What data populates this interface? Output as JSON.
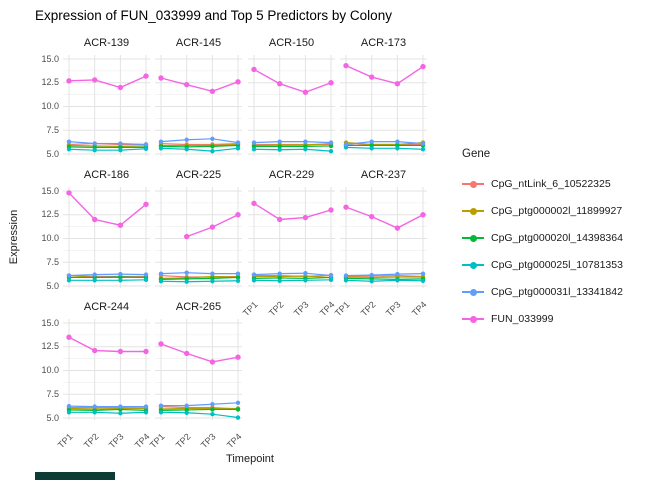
{
  "legend": {
    "title": "Gene"
  },
  "misc": {
    "bottom_left_bar_color": "#0d3b35",
    "grid_major_color": "#e3e3e3",
    "grid_minor_color": "#f1f1f1"
  },
  "chart_data": {
    "type": "line",
    "title": "Expression of FUN_033999 and Top 5 Predictors by Colony",
    "xlabel": "Timepoint",
    "ylabel": "Expression",
    "x_ticks": [
      "TP1",
      "TP2",
      "TP3",
      "TP4"
    ],
    "y_ticks": [
      "15.0",
      "12.5",
      "10.0",
      "7.5",
      "5.0"
    ],
    "y_tick_values": [
      15.0,
      12.5,
      10.0,
      7.5,
      5.0
    ],
    "ylim": [
      5.0,
      15.0
    ],
    "grid": true,
    "legend_position": "right",
    "series": [
      {
        "name": "CpG_ntLink_6_10522325",
        "color": "#F8766D"
      },
      {
        "name": "CpG_ptg000002l_11899927",
        "color": "#B79F00"
      },
      {
        "name": "CpG_ptg000020l_14398364",
        "color": "#00BA38"
      },
      {
        "name": "CpG_ptg000025l_10781353",
        "color": "#00BFC4"
      },
      {
        "name": "CpG_ptg000031l_13341842",
        "color": "#619CFF"
      },
      {
        "name": "FUN_033999",
        "color": "#F564E3"
      }
    ],
    "facets": [
      {
        "name": "ACR-139",
        "values": [
          [
            6.0,
            6.1,
            6.0,
            6.0
          ],
          [
            5.9,
            5.85,
            5.8,
            5.85
          ],
          [
            5.75,
            5.7,
            5.7,
            5.7
          ],
          [
            5.5,
            5.4,
            5.4,
            5.55
          ],
          [
            6.3,
            6.1,
            6.1,
            6.0
          ],
          [
            12.7,
            12.8,
            12.0,
            13.2
          ]
        ]
      },
      {
        "name": "ACR-145",
        "values": [
          [
            6.1,
            6.0,
            6.0,
            6.1
          ],
          [
            5.9,
            5.9,
            5.9,
            6.0
          ],
          [
            5.8,
            5.75,
            5.8,
            5.9
          ],
          [
            5.6,
            5.5,
            5.3,
            5.6
          ],
          [
            6.3,
            6.5,
            6.6,
            6.2
          ],
          [
            13.0,
            12.3,
            11.6,
            12.6
          ]
        ]
      },
      {
        "name": "ACR-150",
        "values": [
          [
            6.0,
            6.0,
            6.0,
            6.0
          ],
          [
            5.9,
            5.95,
            5.95,
            6.1
          ],
          [
            5.8,
            5.8,
            5.8,
            5.85
          ],
          [
            5.5,
            5.45,
            5.5,
            5.3
          ],
          [
            6.2,
            6.3,
            6.3,
            6.2
          ],
          [
            13.9,
            12.4,
            11.5,
            12.5
          ]
        ]
      },
      {
        "name": "ACR-173",
        "values": [
          [
            5.9,
            6.0,
            6.0,
            6.0
          ],
          [
            6.2,
            6.0,
            6.0,
            6.2
          ],
          [
            5.9,
            5.9,
            5.9,
            5.9
          ],
          [
            5.7,
            5.6,
            5.6,
            5.5
          ],
          [
            6.0,
            6.3,
            6.3,
            6.1
          ],
          [
            14.3,
            13.1,
            12.4,
            14.2
          ]
        ]
      },
      {
        "name": "ACR-186",
        "values": [
          [
            6.1,
            6.0,
            6.0,
            6.0
          ],
          [
            6.1,
            5.9,
            5.9,
            5.95
          ],
          [
            5.9,
            5.9,
            5.95,
            5.9
          ],
          [
            5.6,
            5.6,
            5.6,
            5.65
          ],
          [
            6.1,
            6.2,
            6.25,
            6.2
          ],
          [
            14.8,
            12.0,
            11.4,
            13.6
          ]
        ]
      },
      {
        "name": "ACR-225",
        "values": [
          [
            6.1,
            5.95,
            5.95,
            6.0
          ],
          [
            5.8,
            5.85,
            6.0,
            5.95
          ],
          [
            5.7,
            5.75,
            5.8,
            5.9
          ],
          [
            5.5,
            5.45,
            5.5,
            5.55
          ],
          [
            6.3,
            6.4,
            6.3,
            6.3
          ],
          [
            null,
            10.2,
            11.2,
            12.5
          ]
        ]
      },
      {
        "name": "ACR-229",
        "values": [
          [
            6.1,
            6.1,
            6.0,
            6.15
          ],
          [
            6.0,
            6.0,
            6.05,
            5.9
          ],
          [
            5.8,
            5.85,
            5.8,
            5.9
          ],
          [
            5.6,
            5.55,
            5.6,
            5.65
          ],
          [
            6.2,
            6.3,
            6.35,
            6.1
          ],
          [
            13.7,
            12.0,
            12.2,
            13.0
          ]
        ]
      },
      {
        "name": "ACR-237",
        "values": [
          [
            6.0,
            6.05,
            6.1,
            6.0
          ],
          [
            5.95,
            5.9,
            5.95,
            5.95
          ],
          [
            5.8,
            5.75,
            5.7,
            5.75
          ],
          [
            5.6,
            5.5,
            5.6,
            5.55
          ],
          [
            6.1,
            6.15,
            6.25,
            6.3
          ],
          [
            13.3,
            12.3,
            11.1,
            12.5
          ]
        ]
      },
      {
        "name": "ACR-244",
        "values": [
          [
            6.1,
            6.1,
            6.1,
            6.05
          ],
          [
            6.0,
            5.95,
            6.0,
            6.0
          ],
          [
            5.85,
            5.8,
            5.9,
            5.8
          ],
          [
            5.6,
            5.6,
            5.5,
            5.6
          ],
          [
            6.25,
            6.2,
            6.2,
            6.2
          ],
          [
            13.5,
            12.1,
            12.0,
            12.0
          ]
        ]
      },
      {
        "name": "ACR-265",
        "values": [
          [
            6.2,
            6.1,
            6.1,
            5.95
          ],
          [
            5.95,
            6.0,
            6.0,
            6.0
          ],
          [
            5.8,
            5.85,
            5.9,
            5.9
          ],
          [
            5.6,
            5.55,
            5.4,
            5.05
          ],
          [
            6.3,
            6.3,
            6.45,
            6.6
          ],
          [
            12.8,
            11.8,
            10.9,
            11.4
          ]
        ]
      }
    ]
  }
}
